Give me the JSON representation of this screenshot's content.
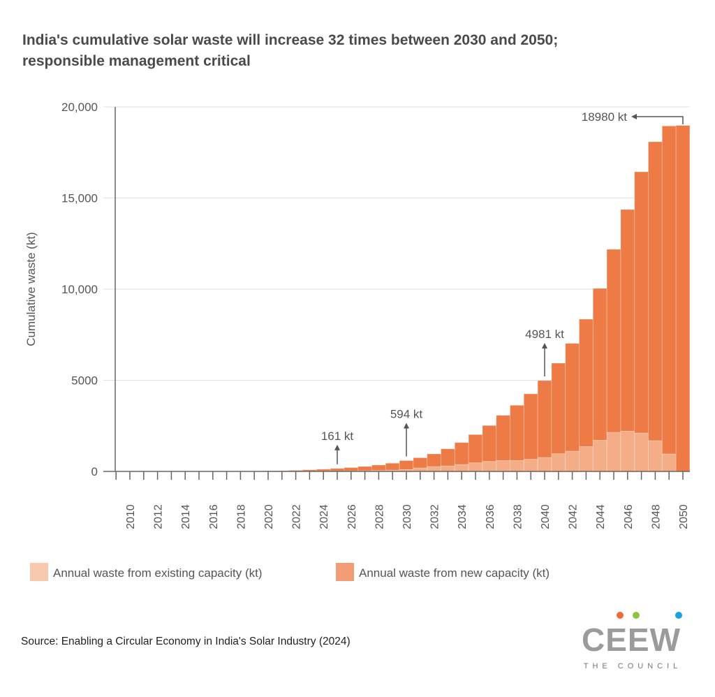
{
  "chart_data": {
    "type": "bar",
    "stacked": true,
    "title": "India's cumulative solar waste will increase 32 times between 2030 and 2050; responsible management critical",
    "title_lines": [
      "India's cumulative solar waste will increase 32 times between 2030 and 2050;",
      "responsible management critical"
    ],
    "ylabel": "Cumulative waste (kt)",
    "xlabel": "",
    "ylim": [
      0,
      20000
    ],
    "yticks": [
      0,
      5000,
      10000,
      15000,
      20000
    ],
    "ytick_labels": [
      "0",
      "5000",
      "10,000",
      "15,000",
      "20,000"
    ],
    "grid": "horizontal",
    "legend_placement": "bottom",
    "categories": [
      2009,
      2010,
      2011,
      2012,
      2013,
      2014,
      2015,
      2016,
      2017,
      2018,
      2019,
      2020,
      2021,
      2022,
      2023,
      2024,
      2025,
      2026,
      2027,
      2028,
      2029,
      2030,
      2031,
      2032,
      2033,
      2034,
      2035,
      2036,
      2037,
      2038,
      2039,
      2040,
      2041,
      2042,
      2043,
      2044,
      2045,
      2046,
      2047,
      2048,
      2049,
      2050
    ],
    "xtick_labels": [
      "2010",
      "2012",
      "2014",
      "2016",
      "2018",
      "2020",
      "2022",
      "2024",
      "2026",
      "2028",
      "2030",
      "2032",
      "2034",
      "2036",
      "2038",
      "2040",
      "2042",
      "2044",
      "2046",
      "2048",
      "2050"
    ],
    "series": [
      {
        "name": "Annual waste from existing capacity (kt)",
        "color": "#F5AD88",
        "legend_color": "#F9C9AF",
        "values": [
          0,
          0,
          0,
          0,
          0,
          0,
          0,
          1,
          2,
          3,
          5,
          8,
          10,
          12,
          15,
          18,
          20,
          30,
          40,
          50,
          70,
          100,
          190,
          268,
          300,
          380,
          471,
          548,
          600,
          600,
          664,
          766,
          970,
          1111,
          1367,
          1711,
          2145,
          2210,
          2107,
          1686,
          958,
          0
        ]
      },
      {
        "name": "Annual waste from new capacity (kt)",
        "color": "#EE7A45",
        "legend_color": "#F29C75",
        "values": [
          0,
          1,
          1,
          2,
          3,
          4,
          5,
          6,
          8,
          10,
          12,
          22,
          30,
          48,
          75,
          102,
          141,
          180,
          230,
          300,
          380,
          494,
          560,
          690,
          938,
          1203,
          1548,
          1969,
          2477,
          3028,
          3589,
          4215,
          4969,
          5913,
          6985,
          8327,
          10039,
          12158,
          14330,
          16398,
          17992,
          18980
        ]
      }
    ],
    "totals_axis_note": "",
    "annotations": [
      {
        "year": 2025,
        "text": "161 kt",
        "value": 161
      },
      {
        "year": 2030,
        "text": "594 kt",
        "value": 594
      },
      {
        "year": 2040,
        "text": "4981 kt",
        "value": 4981
      },
      {
        "year": 2050,
        "text": "18980 kt",
        "value": 18980
      }
    ]
  },
  "source": "Source: Enabling a Circular Economy in India's Solar Industry (2024)",
  "logo": {
    "text": "CEEW",
    "subtext": "THE COUNCIL",
    "dot_colors": [
      "#EF6A3A",
      "#8CC63F",
      "#1BA1E2"
    ]
  }
}
